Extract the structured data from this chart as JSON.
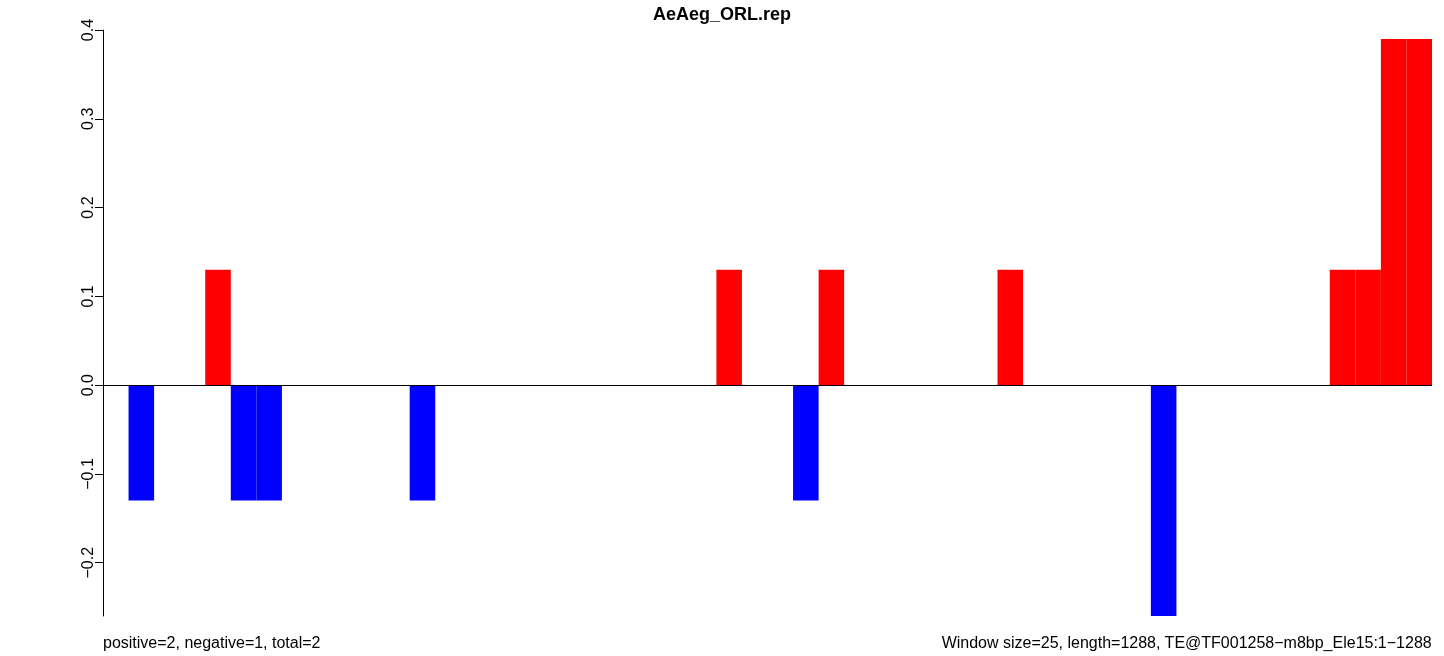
{
  "chart_data": {
    "type": "bar",
    "title": "AeAeg_ORL.rep",
    "categories": [
      null,
      null,
      null,
      null,
      null,
      null,
      null,
      null,
      null,
      null,
      null,
      null,
      null,
      null,
      null,
      null,
      null,
      null,
      null,
      null,
      null,
      null,
      null,
      null,
      null,
      null,
      null,
      null,
      null,
      null,
      null,
      null,
      null,
      null,
      null,
      null,
      null,
      null,
      null,
      null,
      null,
      null,
      null,
      null,
      null,
      null,
      null,
      null,
      null,
      null,
      null,
      null
    ],
    "values": [
      0,
      -0.13,
      0,
      0,
      0.13,
      -0.13,
      -0.13,
      0,
      0,
      0,
      0,
      0,
      -0.13,
      0,
      0,
      0,
      0,
      0,
      0,
      0,
      0,
      0,
      0,
      0,
      0.13,
      0,
      0,
      -0.13,
      0.13,
      0,
      0,
      0,
      0,
      0,
      0,
      0.13,
      0,
      0,
      0,
      0,
      0,
      -0.26,
      0,
      0,
      0,
      0,
      0,
      0,
      0.13,
      0.13,
      0.39,
      0.39
    ],
    "colors": [
      "#ff0000",
      "#0000ff",
      "#ff0000",
      "#ff0000",
      "#ff0000",
      "#0000ff",
      "#0000ff",
      "#ff0000",
      "#ff0000",
      "#ff0000",
      "#ff0000",
      "#ff0000",
      "#0000ff",
      "#ff0000",
      "#ff0000",
      "#ff0000",
      "#ff0000",
      "#ff0000",
      "#ff0000",
      "#ff0000",
      "#ff0000",
      "#ff0000",
      "#ff0000",
      "#ff0000",
      "#ff0000",
      "#ff0000",
      "#ff0000",
      "#0000ff",
      "#ff0000",
      "#ff0000",
      "#ff0000",
      "#ff0000",
      "#ff0000",
      "#ff0000",
      "#ff0000",
      "#ff0000",
      "#ff0000",
      "#ff0000",
      "#ff0000",
      "#ff0000",
      "#ff0000",
      "#0000ff",
      "#ff0000",
      "#ff0000",
      "#ff0000",
      "#ff0000",
      "#ff0000",
      "#ff0000",
      "#ff0000",
      "#ff0000",
      "#ff0000",
      "#ff0000"
    ],
    "ylim": [
      -0.26,
      0.4
    ],
    "yticks": [
      -0.2,
      -0.1,
      {
        "value": 0,
        "label": "0.0"
      },
      0.1,
      0.2,
      0.3,
      0.4
    ],
    "tick_labels": "y",
    "grid": false,
    "ref_lines": [
      {
        "axis": "y",
        "value": 0,
        "color": "#000000"
      }
    ],
    "annotations": [
      "positive=2, negative=1, total=2",
      "Window size=25, length=1288, TE@TF001258−m8bp_Ele15:1−1288"
    ]
  }
}
